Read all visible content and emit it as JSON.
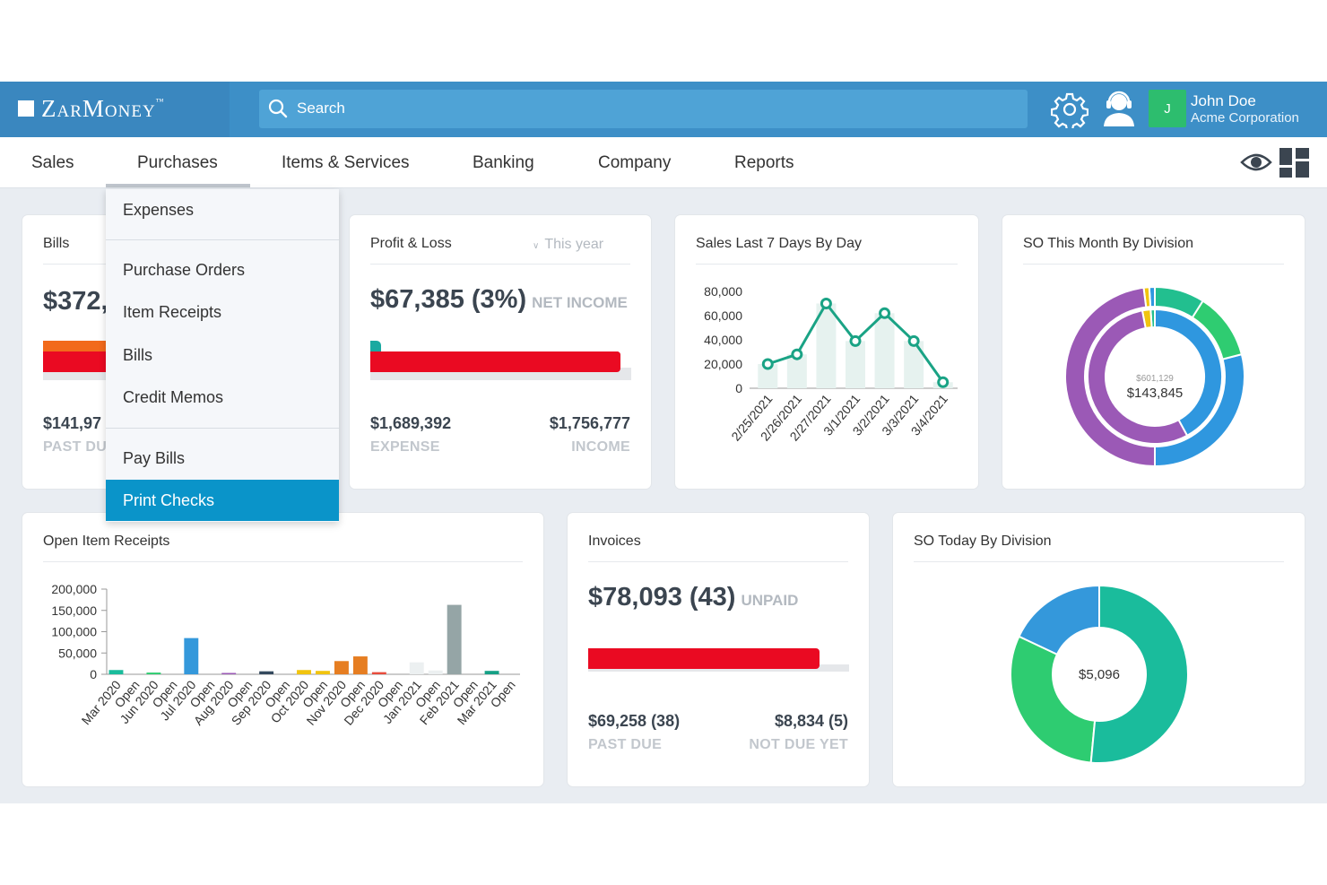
{
  "brand": {
    "name": "ZarMoney",
    "tm": "™"
  },
  "search": {
    "placeholder": "Search"
  },
  "user": {
    "initial": "J",
    "name": "John Doe",
    "company": "Acme Corporation"
  },
  "nav": [
    "Sales",
    "Purchases",
    "Items & Services",
    "Banking",
    "Company",
    "Reports"
  ],
  "dropdown": {
    "groups": [
      [
        "Expenses"
      ],
      [
        "Purchase Orders",
        "Item Receipts",
        "Bills",
        "Credit Memos"
      ],
      [
        "Pay Bills",
        "Print Checks"
      ]
    ],
    "active": "Print Checks"
  },
  "bills_card": {
    "title": "Bills",
    "amount": "$372,",
    "past_due_value": "$141,97",
    "past_due_label": "PAST DU"
  },
  "profit_loss": {
    "title": "Profit & Loss",
    "period": "This year",
    "amount": "$67,385 (3%)",
    "suffix": "NET INCOME",
    "expense_value": "$1,689,392",
    "expense_label": "EXPENSE",
    "income_value": "$1,756,777",
    "income_label": "INCOME",
    "net_fraction": 0.04
  },
  "sales_7_days": {
    "title": "Sales Last 7 Days By Day",
    "chart_data": {
      "type": "line",
      "x": [
        "2/25/2021",
        "2/26/2021",
        "2/27/2021",
        "3/1/2021",
        "3/2/2021",
        "3/3/2021",
        "3/4/2021"
      ],
      "values": [
        20000,
        28000,
        70000,
        39000,
        62000,
        39000,
        5000
      ],
      "y_ticks": [
        "80,000",
        "60,000",
        "40,000",
        "20,000",
        "0"
      ],
      "ylim": [
        0,
        80000
      ],
      "color": "#1aa385",
      "bar_color": "#e6f2ef"
    }
  },
  "so_month": {
    "title": "SO This Month By Division",
    "center_small": "$601,129",
    "center_big": "$143,845",
    "chart_data": {
      "type": "pie",
      "rings": [
        {
          "name": "outer",
          "slices": [
            {
              "value": 9,
              "color": "#22bf8f"
            },
            {
              "value": 12,
              "color": "#2fcc71"
            },
            {
              "value": 29,
              "color": "#2f97df"
            },
            {
              "value": 48,
              "color": "#9b59b6"
            },
            {
              "value": 1,
              "color": "#f1c40f"
            },
            {
              "value": 1,
              "color": "#2f97df"
            }
          ]
        },
        {
          "name": "inner",
          "slices": [
            {
              "value": 42,
              "color": "#2f97df"
            },
            {
              "value": 55,
              "color": "#9b59b6"
            },
            {
              "value": 2,
              "color": "#f1c40f"
            },
            {
              "value": 1,
              "color": "#22bf8f"
            }
          ]
        }
      ]
    }
  },
  "open_item_receipts": {
    "title": "Open Item Receipts",
    "chart_data": {
      "type": "bar",
      "categories": [
        "Mar 2020",
        "Open",
        "Jun 2020",
        "Open",
        "Jul 2020",
        "Open",
        "Aug 2020",
        "Open",
        "Sep 2020",
        "Open",
        "Oct 2020",
        "Open",
        "Nov 2020",
        "Open",
        "Dec 2020",
        "Open",
        "Jan 2021",
        "Open",
        "Feb 2021",
        "Open",
        "Mar 2021",
        "Open"
      ],
      "values": [
        10000,
        0,
        4000,
        0,
        85000,
        0,
        1500,
        0,
        7000,
        0,
        10000,
        8000,
        31000,
        42000,
        5000,
        0,
        28000,
        9000,
        163000,
        0,
        8000,
        0
      ],
      "colors": [
        "#1abc9c",
        "#1abc9c",
        "#2ecc71",
        "#2ecc71",
        "#3498db",
        "#3498db",
        "#9b59b6",
        "#9b59b6",
        "#34495e",
        "#34495e",
        "#f1c40f",
        "#f1c40f",
        "#e67e22",
        "#e67e22",
        "#e74c3c",
        "#e74c3c",
        "#ecf0f1",
        "#ecf0f1",
        "#95a5a6",
        "#95a5a6",
        "#16a085",
        "#16a085"
      ],
      "y_ticks": [
        "200,000",
        "150,000",
        "100,000",
        "50,000",
        "0"
      ],
      "ylim": [
        0,
        200000
      ]
    }
  },
  "invoices": {
    "title": "Invoices",
    "amount": "$78,093 (43)",
    "suffix": "UNPAID",
    "past_due_value": "$69,258 (38)",
    "past_due_label": "PAST DUE",
    "not_due_value": "$8,834 (5)",
    "not_due_label": "NOT DUE YET",
    "past_due_fraction": 0.887
  },
  "so_today": {
    "title": "SO Today By Division",
    "center": "$5,096",
    "chart_data": {
      "type": "pie",
      "slices": [
        {
          "value": 51.5,
          "color": "#1abc9c"
        },
        {
          "value": 30.5,
          "color": "#2ecc71"
        },
        {
          "value": 18,
          "color": "#3498db"
        }
      ]
    }
  }
}
